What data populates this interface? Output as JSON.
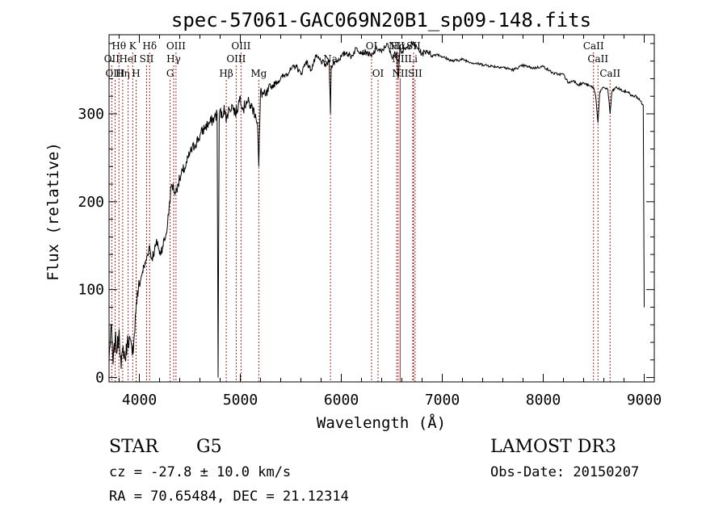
{
  "chart_data": {
    "type": "line",
    "title": "spec-57061-GAC069N20B1_sp09-148.fits",
    "xlabel": "Wavelength (Å)",
    "ylabel": "Flux (relative)",
    "xlim": [
      3700,
      9100
    ],
    "ylim": [
      -5,
      390
    ],
    "x_ticks": [
      4000,
      5000,
      6000,
      7000,
      8000,
      9000
    ],
    "y_ticks": [
      0,
      100,
      200,
      300
    ],
    "grid": false,
    "series": [
      {
        "name": "spectrum",
        "x": [
          3700,
          3720,
          3740,
          3760,
          3780,
          3800,
          3820,
          3840,
          3860,
          3880,
          3900,
          3930,
          3950,
          3970,
          3990,
          4010,
          4030,
          4060,
          4080,
          4100,
          4120,
          4150,
          4180,
          4200,
          4230,
          4260,
          4280,
          4300,
          4320,
          4340,
          4360,
          4380,
          4400,
          4430,
          4460,
          4500,
          4550,
          4600,
          4650,
          4700,
          4740,
          4770,
          4780,
          4790,
          4800,
          4820,
          4840,
          4860,
          4870,
          4890,
          4920,
          4950,
          4980,
          5000,
          5030,
          5060,
          5100,
          5150,
          5170,
          5183,
          5200,
          5250,
          5300,
          5350,
          5400,
          5450,
          5500,
          5550,
          5600,
          5650,
          5700,
          5750,
          5800,
          5850,
          5880,
          5893,
          5900,
          5950,
          6000,
          6050,
          6100,
          6150,
          6200,
          6250,
          6300,
          6350,
          6400,
          6450,
          6500,
          6550,
          6563,
          6580,
          6600,
          6650,
          6700,
          6750,
          6800,
          6850,
          6900,
          6950,
          7000,
          7100,
          7200,
          7300,
          7400,
          7500,
          7600,
          7700,
          7800,
          7900,
          8000,
          8100,
          8150,
          8200,
          8250,
          8300,
          8350,
          8400,
          8450,
          8498,
          8520,
          8542,
          8560,
          8600,
          8640,
          8662,
          8680,
          8720,
          8760,
          8800,
          8840,
          8880,
          8920,
          8960,
          8990,
          9000
        ],
        "values": [
          20,
          60,
          15,
          45,
          30,
          55,
          10,
          35,
          20,
          40,
          45,
          25,
          50,
          85,
          100,
          110,
          120,
          130,
          140,
          150,
          135,
          145,
          155,
          140,
          150,
          160,
          175,
          200,
          220,
          215,
          210,
          220,
          225,
          235,
          240,
          255,
          265,
          275,
          285,
          290,
          295,
          300,
          0,
          290,
          305,
          295,
          310,
          290,
          300,
          305,
          310,
          300,
          310,
          320,
          305,
          315,
          310,
          300,
          290,
          240,
          325,
          320,
          330,
          335,
          340,
          345,
          350,
          355,
          345,
          360,
          350,
          365,
          360,
          355,
          360,
          300,
          355,
          360,
          365,
          370,
          365,
          375,
          370,
          370,
          365,
          375,
          370,
          380,
          365,
          370,
          340,
          375,
          370,
          375,
          380,
          375,
          368,
          372,
          366,
          368,
          365,
          360,
          362,
          358,
          356,
          354,
          353,
          350,
          355,
          352,
          354,
          346,
          345,
          345,
          335,
          338,
          333,
          335,
          332,
          330,
          320,
          290,
          325,
          330,
          328,
          300,
          325,
          330,
          328,
          325,
          325,
          320,
          320,
          315,
          310,
          80
        ]
      }
    ],
    "line_markers": [
      {
        "label": "Hθ",
        "x": 3798,
        "row": 1
      },
      {
        "label": "OII",
        "x": 3727,
        "row": 2
      },
      {
        "label": "OIII",
        "x": 3760,
        "row": 3
      },
      {
        "label": "Hη",
        "x": 3835,
        "row": 3
      },
      {
        "label": "K",
        "x": 3934,
        "row": 1
      },
      {
        "label": "HeI",
        "x": 3889,
        "row": 2
      },
      {
        "label": "H",
        "x": 3968,
        "row": 3
      },
      {
        "label": "Hδ",
        "x": 4102,
        "row": 1
      },
      {
        "label": "SII",
        "x": 4072,
        "row": 2
      },
      {
        "label": "OIII",
        "x": 4363,
        "row": 1
      },
      {
        "label": "Hγ",
        "x": 4340,
        "row": 2
      },
      {
        "label": "G",
        "x": 4305,
        "row": 3
      },
      {
        "label": "OIII",
        "x": 5007,
        "row": 1
      },
      {
        "label": "OIII",
        "x": 4959,
        "row": 2
      },
      {
        "label": "Hβ",
        "x": 4861,
        "row": 3
      },
      {
        "label": "Mg",
        "x": 5183,
        "row": 3
      },
      {
        "label": "Na",
        "x": 5893,
        "row": 2
      },
      {
        "label": "OI",
        "x": 6300,
        "row": 1
      },
      {
        "label": "OI",
        "x": 6364,
        "row": 3
      },
      {
        "label": "NII",
        "x": 6548,
        "row": 1
      },
      {
        "label": "Hα",
        "x": 6563,
        "row": 1
      },
      {
        "label": "NII",
        "x": 6583,
        "row": 2
      },
      {
        "label": "NII",
        "x": 6583,
        "row": 3
      },
      {
        "label": "SII",
        "x": 6716,
        "row": 1
      },
      {
        "label": "Li",
        "x": 6708,
        "row": 2
      },
      {
        "label": "SII",
        "x": 6731,
        "row": 3
      },
      {
        "label": "CaII",
        "x": 8498,
        "row": 1
      },
      {
        "label": "CaII",
        "x": 8542,
        "row": 2
      },
      {
        "label": "CaII",
        "x": 8662,
        "row": 3
      }
    ]
  },
  "info": {
    "object_class": "STAR",
    "subclass": "G5",
    "survey": "LAMOST DR3",
    "redshift_line": "cz = -27.8 ± 10.0 km/s",
    "obs_date": "Obs-Date: 20150207",
    "coords": "RA =  70.65484, DEC =  21.12314"
  },
  "colors": {
    "spectrum": "#000000",
    "marker_lines": "#b22222"
  }
}
